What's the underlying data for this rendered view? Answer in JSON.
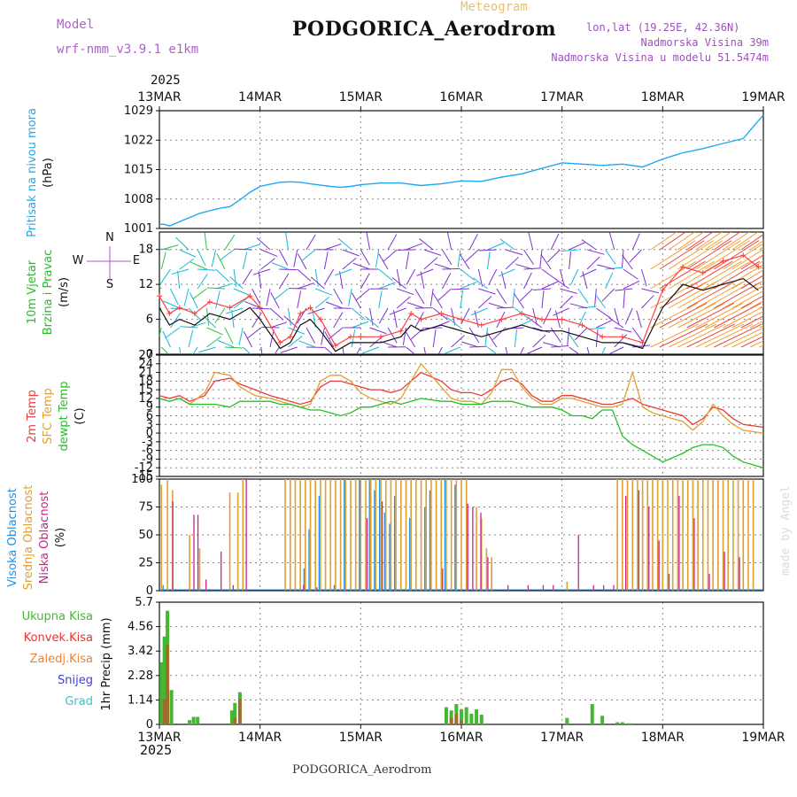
{
  "header": {
    "title": "PODGORICA_Aerodrom",
    "meteogram": "Meteogram",
    "model_label": "Model",
    "model_name": "wrf-nmm_v3.9.1 e1km",
    "lonlat": "lon,lat (19.25E, 42.36N)",
    "elevation": "Nadmorska Visina 39m",
    "elevation_model": "Nadmorska Visina u modelu 51.5474m",
    "year_top": "2025",
    "year_bottom": "2025",
    "footer": "PODGORICA_Aerodrom",
    "watermark": "made by Angel"
  },
  "colors": {
    "pressure": "#1ea8f0",
    "wind_speed": "#111111",
    "wind_gust": "#ff4040",
    "temp_2m": "#ee3a3a",
    "temp_sfc": "#e0a030",
    "dewpoint": "#22c022",
    "cloud_high": "#1e90e8",
    "cloud_mid": "#e0a030",
    "cloud_low": "#cc2090",
    "precip_total": "#44b830",
    "precip_conv": "#ee3030",
    "precip_ice": "#f08030",
    "snow": "#4040e0",
    "hail": "#30c8c8",
    "direction_legend": "#b050d0"
  },
  "chart_data": [
    {
      "type": "line",
      "panel": "pressure",
      "ylabel_lines": [
        "Pritisak na nivou mora",
        "(hPa)"
      ],
      "ylim": [
        1001,
        1029
      ],
      "yticks": [
        1001,
        1008,
        1015,
        1022,
        1029
      ],
      "x_days": [
        "13MAR",
        "14MAR",
        "15MAR",
        "16MAR",
        "17MAR",
        "18MAR",
        "19MAR"
      ],
      "series": [
        {
          "x": [
            0,
            0.05,
            0.1,
            0.2,
            0.3,
            0.4,
            0.5,
            0.6,
            0.7,
            0.8,
            0.9,
            1.0,
            1.1,
            1.2,
            1.3,
            1.4,
            1.5,
            1.6,
            1.7,
            1.8,
            1.9,
            2.0,
            2.2,
            2.4,
            2.6,
            2.8,
            3.0,
            3.2,
            3.4,
            3.6,
            3.8,
            4.0,
            4.2,
            4.4,
            4.6,
            4.8,
            5.0,
            5.2,
            5.4,
            5.6,
            5.8,
            6.0
          ],
          "values": [
            1002.0,
            1002.0,
            1001.6,
            1002.6,
            1003.6,
            1004.6,
            1005.2,
            1005.8,
            1006.2,
            1007.8,
            1009.6,
            1011.0,
            1011.5,
            1012.0,
            1012.1,
            1012.0,
            1011.6,
            1011.3,
            1011.0,
            1010.8,
            1011.0,
            1011.4,
            1011.8,
            1011.8,
            1011.2,
            1011.6,
            1012.3,
            1012.2,
            1013.2,
            1014.0,
            1015.3,
            1016.6,
            1016.3,
            1016.0,
            1016.3,
            1015.6,
            1017.5,
            1019.0,
            1020.0,
            1021.2,
            1022.4,
            1028.0
          ]
        }
      ]
    },
    {
      "type": "line",
      "panel": "wind",
      "ylabel_lines": [
        "10m Vjetar",
        "Brzina i Pravac",
        "(m/s)"
      ],
      "direction_legend": [
        "N",
        "E",
        "S",
        "W"
      ],
      "ylim": [
        0,
        21
      ],
      "yticks": [
        0,
        6,
        12,
        18
      ],
      "series": [
        {
          "name": "speed",
          "x": [
            0,
            0.1,
            0.2,
            0.35,
            0.5,
            0.7,
            0.9,
            1.0,
            1.2,
            1.3,
            1.4,
            1.5,
            1.6,
            1.75,
            1.9,
            2.0,
            2.2,
            2.4,
            2.5,
            2.6,
            2.8,
            3.0,
            3.2,
            3.4,
            3.6,
            3.8,
            4.0,
            4.2,
            4.4,
            4.6,
            4.8,
            5.0,
            5.2,
            5.4,
            5.6,
            5.8,
            5.95
          ],
          "values": [
            8,
            5,
            6,
            5,
            7,
            6,
            8,
            6,
            1,
            2,
            5,
            6,
            4,
            0.5,
            2,
            2,
            2,
            3,
            5,
            4,
            5,
            4,
            3,
            4,
            5,
            4,
            4,
            3,
            2,
            2,
            1,
            8,
            12,
            11,
            12,
            13,
            11
          ]
        },
        {
          "name": "gust",
          "x": [
            0,
            0.1,
            0.2,
            0.35,
            0.5,
            0.7,
            0.9,
            1.0,
            1.2,
            1.3,
            1.4,
            1.5,
            1.6,
            1.75,
            1.9,
            2.0,
            2.2,
            2.4,
            2.5,
            2.6,
            2.8,
            3.0,
            3.2,
            3.4,
            3.6,
            3.8,
            4.0,
            4.2,
            4.4,
            4.6,
            4.8,
            5.0,
            5.2,
            5.4,
            5.6,
            5.8,
            5.95
          ],
          "values": [
            10,
            7,
            8,
            7,
            9,
            8,
            10,
            8,
            2,
            3,
            7,
            8,
            6,
            1.5,
            3,
            3,
            3,
            4,
            7,
            6,
            7,
            6,
            5,
            6,
            7,
            6,
            6,
            5,
            3,
            3,
            2,
            11,
            15,
            14,
            16,
            17,
            15
          ]
        }
      ]
    },
    {
      "type": "line",
      "panel": "temperature",
      "ylabel_lines": [
        "2m Temp",
        "SFC Temp",
        "dewpt Temp",
        "(C)"
      ],
      "ylim": [
        -15,
        27
      ],
      "yticks": [
        -15,
        -12,
        -9,
        -6,
        -3,
        0,
        3,
        6,
        9,
        12,
        15,
        18,
        21,
        24,
        27
      ],
      "series": [
        {
          "name": "2m Temp",
          "x": [
            0,
            0.1,
            0.2,
            0.3,
            0.45,
            0.55,
            0.7,
            0.8,
            0.95,
            1.1,
            1.2,
            1.3,
            1.4,
            1.5,
            1.6,
            1.7,
            1.8,
            1.9,
            2.0,
            2.1,
            2.2,
            2.3,
            2.4,
            2.6,
            2.8,
            2.9,
            3.0,
            3.1,
            3.2,
            3.3,
            3.4,
            3.5,
            3.6,
            3.7,
            3.8,
            3.9,
            4.0,
            4.1,
            4.2,
            4.3,
            4.4,
            4.5,
            4.6,
            4.7,
            4.8,
            4.9,
            5.0,
            5.2,
            5.3,
            5.4,
            5.5,
            5.6,
            5.7,
            5.8,
            6.0
          ],
          "values": [
            13,
            12,
            13,
            11,
            13,
            18,
            19,
            17,
            15,
            13,
            12,
            11,
            10,
            11,
            16,
            18,
            18,
            17,
            16,
            15,
            15,
            14,
            15,
            21,
            18,
            15,
            14,
            14,
            13,
            15,
            18,
            19,
            17,
            13,
            11,
            11,
            13,
            13,
            12,
            11,
            10,
            10,
            11,
            12,
            10,
            9,
            8,
            6,
            3,
            5,
            9,
            8,
            5,
            3,
            2
          ]
        },
        {
          "name": "SFC Temp",
          "x": [
            0,
            0.1,
            0.2,
            0.3,
            0.45,
            0.55,
            0.7,
            0.8,
            0.95,
            1.1,
            1.2,
            1.3,
            1.4,
            1.5,
            1.6,
            1.7,
            1.8,
            1.9,
            2.0,
            2.1,
            2.2,
            2.3,
            2.4,
            2.6,
            2.8,
            2.9,
            3.0,
            3.1,
            3.2,
            3.3,
            3.4,
            3.5,
            3.6,
            3.7,
            3.8,
            3.9,
            4.0,
            4.1,
            4.2,
            4.3,
            4.4,
            4.5,
            4.6,
            4.7,
            4.8,
            4.9,
            5.0,
            5.2,
            5.3,
            5.4,
            5.5,
            5.6,
            5.7,
            5.8,
            6.0
          ],
          "values": [
            12,
            11,
            12,
            10,
            14,
            21,
            20,
            16,
            13,
            12,
            11,
            10,
            9,
            10,
            18,
            20,
            20,
            18,
            14,
            12,
            11,
            10,
            12,
            24,
            16,
            12,
            11,
            11,
            10,
            14,
            22,
            22,
            16,
            12,
            10,
            10,
            12,
            12,
            11,
            10,
            9,
            9,
            10,
            21,
            9,
            7,
            6,
            4,
            1,
            4,
            10,
            6,
            3,
            1,
            0
          ]
        },
        {
          "name": "dewpt Temp",
          "x": [
            0,
            0.1,
            0.2,
            0.3,
            0.45,
            0.55,
            0.7,
            0.8,
            0.95,
            1.1,
            1.2,
            1.3,
            1.4,
            1.5,
            1.6,
            1.7,
            1.8,
            1.9,
            2.0,
            2.1,
            2.2,
            2.3,
            2.4,
            2.6,
            2.8,
            2.9,
            3.0,
            3.1,
            3.2,
            3.3,
            3.4,
            3.5,
            3.6,
            3.7,
            3.8,
            3.9,
            4.0,
            4.1,
            4.2,
            4.3,
            4.4,
            4.5,
            4.6,
            4.7,
            4.8,
            4.9,
            5.0,
            5.2,
            5.3,
            5.4,
            5.5,
            5.6,
            5.7,
            5.8,
            6.0
          ],
          "values": [
            12,
            11,
            12,
            10,
            10,
            10,
            9,
            11,
            11,
            11,
            10,
            10,
            9,
            8,
            8,
            7,
            6,
            7,
            9,
            9,
            10,
            11,
            10,
            12,
            11,
            11,
            10,
            10,
            10,
            11,
            11,
            11,
            10,
            9,
            9,
            9,
            8,
            6,
            6,
            5,
            8,
            8,
            -1,
            -4,
            -6,
            -8,
            -10,
            -7,
            -5,
            -4,
            -4,
            -5,
            -8,
            -10,
            -12
          ]
        }
      ]
    },
    {
      "type": "bar",
      "panel": "cloud",
      "ylabel_lines": [
        "Visoka Oblacnost",
        "Srednja Oblacnost",
        "Niska Oblacnost",
        "(%)"
      ],
      "ylim": [
        0,
        100
      ],
      "yticks": [
        0,
        25,
        50,
        75,
        100
      ],
      "series": [
        {
          "name": "Visoka Oblacnost",
          "x": [
            0.05,
            1.45,
            1.5,
            1.6,
            1.75,
            1.85,
            2.0,
            2.1,
            2.15,
            2.2,
            2.25,
            2.3,
            2.35,
            2.5,
            2.65,
            2.7,
            2.85,
            2.95
          ],
          "values": [
            5,
            20,
            55,
            85,
            5,
            100,
            100,
            100,
            90,
            100,
            70,
            60,
            85,
            65,
            75,
            90,
            100,
            95
          ]
        },
        {
          "name": "Srednja Oblacnost",
          "x": [
            0.02,
            0.08,
            0.13,
            0.3,
            0.4,
            0.7,
            0.78,
            0.83,
            1.25,
            1.3,
            1.35,
            1.4,
            1.45,
            1.5,
            1.55,
            1.6,
            1.65,
            1.7,
            1.75,
            1.8,
            1.85,
            1.9,
            1.95,
            2.0,
            2.05,
            2.1,
            2.15,
            2.2,
            2.25,
            2.3,
            2.35,
            2.4,
            2.45,
            2.5,
            2.55,
            2.6,
            2.65,
            2.7,
            2.75,
            2.8,
            2.85,
            2.9,
            2.95,
            3.0,
            3.05,
            3.15,
            3.2,
            3.25,
            3.3,
            4.05,
            4.55,
            4.6,
            4.65,
            4.7,
            4.75,
            4.8,
            4.85,
            4.9,
            4.95,
            5.0,
            5.05,
            5.1,
            5.15,
            5.2,
            5.25,
            5.3,
            5.35,
            5.4,
            5.45,
            5.5,
            5.55,
            5.6,
            5.65,
            5.7,
            5.75,
            5.8,
            5.85,
            5.9
          ],
          "values": [
            95,
            100,
            90,
            50,
            38,
            88,
            88,
            100,
            100,
            100,
            100,
            100,
            100,
            100,
            100,
            100,
            100,
            100,
            100,
            100,
            100,
            100,
            100,
            100,
            100,
            100,
            100,
            100,
            100,
            100,
            100,
            100,
            100,
            100,
            100,
            100,
            100,
            100,
            100,
            100,
            100,
            100,
            100,
            100,
            100,
            75,
            65,
            38,
            30,
            8,
            100,
            100,
            100,
            100,
            100,
            100,
            100,
            100,
            100,
            100,
            100,
            100,
            100,
            100,
            100,
            100,
            100,
            100,
            100,
            100,
            100,
            100,
            100,
            100,
            100,
            100,
            100,
            100
          ]
        },
        {
          "name": "Niska Oblacnost",
          "x": [
            0.12,
            0.33,
            0.37,
            0.45,
            0.6,
            0.72,
            0.85,
            1.42,
            1.55,
            2.05,
            2.2,
            2.8,
            3.05,
            3.1,
            3.18,
            3.25,
            3.45,
            3.65,
            3.8,
            3.9,
            4.15,
            4.3,
            4.4,
            4.5,
            4.62,
            4.75,
            4.85,
            4.95,
            5.05,
            5.15,
            5.3,
            5.45,
            5.6,
            5.75
          ],
          "values": [
            80,
            68,
            68,
            10,
            35,
            5,
            100,
            5,
            3,
            65,
            80,
            20,
            78,
            75,
            70,
            30,
            5,
            5,
            5,
            5,
            50,
            5,
            5,
            5,
            85,
            90,
            75,
            45,
            15,
            85,
            65,
            15,
            35,
            30
          ]
        }
      ]
    },
    {
      "type": "bar",
      "panel": "precip",
      "ylabel_lines": [
        "1hr Precip (mm)"
      ],
      "legend": [
        "Ukupna Kisa",
        "Konvek.Kisa",
        "Zaledj.Kisa",
        "Snijeg",
        "Grad"
      ],
      "ylim": [
        0,
        5.7
      ],
      "yticks": [
        0,
        1.14,
        2.28,
        3.42,
        4.56,
        5.7
      ],
      "series": [
        {
          "name": "Ukupna Kisa",
          "x": [
            0.02,
            0.05,
            0.08,
            0.12,
            0.3,
            0.34,
            0.38,
            0.72,
            0.75,
            0.8,
            2.85,
            2.9,
            2.95,
            3.0,
            3.05,
            3.1,
            3.15,
            3.2,
            3.25,
            4.05,
            4.3,
            4.4,
            4.55,
            4.6,
            4.65,
            4.68
          ],
          "values": [
            2.9,
            4.1,
            5.3,
            1.6,
            0.2,
            0.35,
            0.35,
            0.65,
            1.0,
            1.5,
            0.8,
            0.65,
            0.95,
            0.7,
            0.8,
            0.5,
            0.7,
            0.45,
            0.05,
            0.3,
            0.95,
            0.4,
            0.1,
            0.1,
            0.05,
            0.05
          ]
        },
        {
          "name": "Konvek.Kisa",
          "x": [
            0.05,
            0.08,
            0.75,
            0.8,
            2.9,
            2.95,
            3.0
          ],
          "values": [
            1.2,
            3.7,
            0.3,
            1.2,
            0.3,
            0.5,
            0.2
          ]
        }
      ]
    }
  ]
}
